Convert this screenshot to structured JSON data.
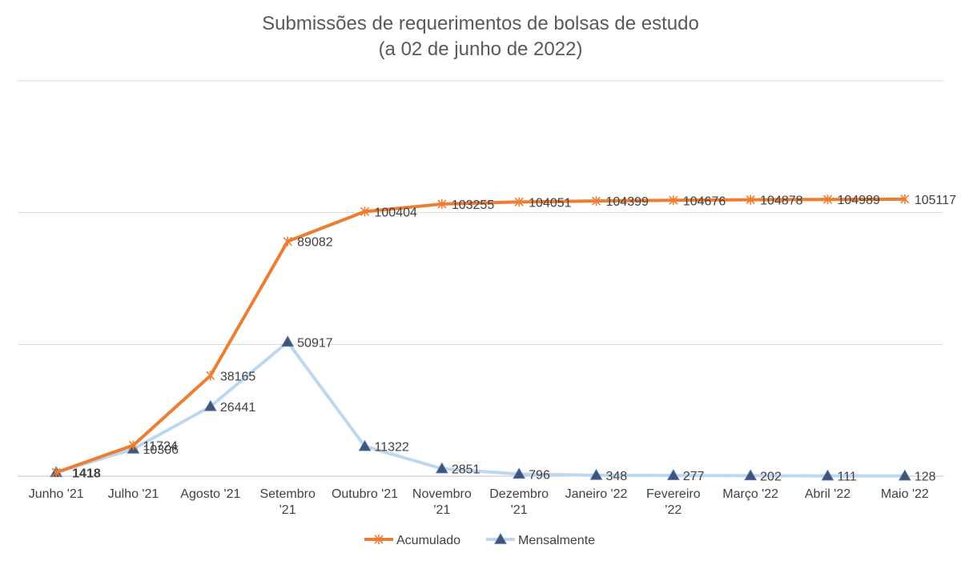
{
  "title": {
    "line1": "Submissões de requerimentos de bolsas de estudo",
    "line2": "(a 02 de junho de 2022)"
  },
  "chart_data": {
    "type": "line",
    "categories": [
      [
        "Junho '21"
      ],
      [
        "Julho '21"
      ],
      [
        "Agosto '21"
      ],
      [
        "Setembro",
        "'21"
      ],
      [
        "Outubro '21"
      ],
      [
        "Novembro",
        "'21"
      ],
      [
        "Dezembro",
        "'21"
      ],
      [
        "Janeiro '22"
      ],
      [
        "Fevereiro",
        "'22"
      ],
      [
        "Março '22"
      ],
      [
        "Abril '22"
      ],
      [
        "Maio '22"
      ]
    ],
    "series": [
      {
        "name": "Acumulado",
        "color": "#ED7D31",
        "marker": "star",
        "values": [
          1418,
          11724,
          38165,
          89082,
          100404,
          103255,
          104051,
          104399,
          104676,
          104878,
          104989,
          105117
        ],
        "labels": [
          "1418",
          "11724",
          "38165",
          "89082",
          "100404",
          "103255",
          "104051",
          "104399",
          "104676",
          "104878",
          "104989",
          "105117"
        ]
      },
      {
        "name": "Mensalmente",
        "color": "#BDD7EE",
        "marker": "triangle",
        "values": [
          1418,
          10306,
          26441,
          50917,
          11322,
          2851,
          796,
          348,
          277,
          202,
          111,
          128
        ],
        "labels": [
          "1418",
          "10306",
          "26441",
          "50917",
          "11322",
          "2851",
          "796",
          "348",
          "277",
          "202",
          "111",
          "128"
        ]
      }
    ],
    "ylim": [
      0,
      150000
    ],
    "yticks": [
      0,
      50000,
      100000,
      150000
    ],
    "grid": true,
    "legend_position": "bottom"
  }
}
